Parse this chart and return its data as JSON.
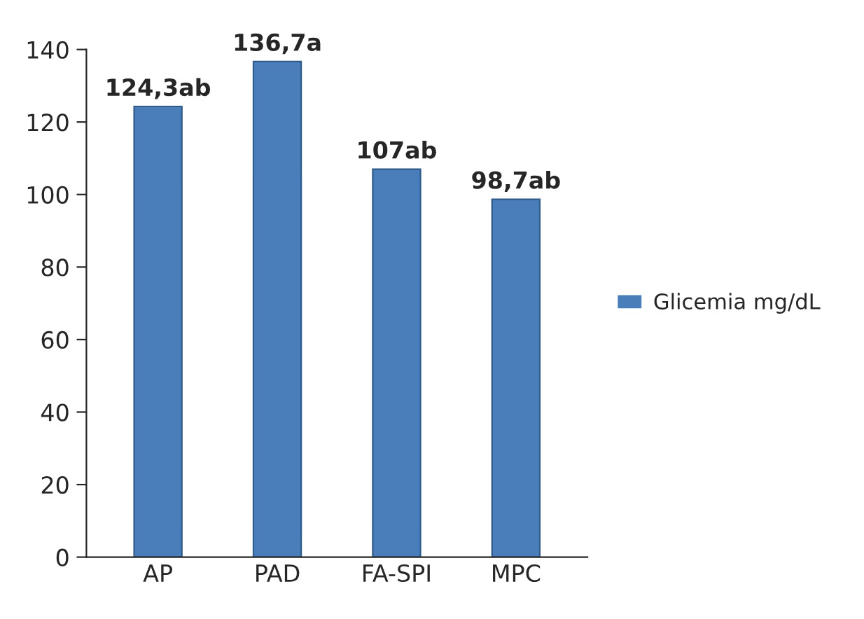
{
  "chart_data": {
    "type": "bar",
    "categories": [
      "AP",
      "PAD",
      "FA-SPI",
      "MPC"
    ],
    "series": [
      {
        "name": "Glicemia mg/dL",
        "color": "#4a7ebb",
        "values": [
          124.3,
          136.7,
          107,
          98.7
        ]
      }
    ],
    "value_labels": [
      "124,3ab",
      "136,7a",
      "107ab",
      "98,7ab"
    ],
    "ylim": [
      0,
      140
    ],
    "yticks": [
      0,
      20,
      40,
      60,
      80,
      100,
      120,
      140
    ],
    "grid": false,
    "legend": "right"
  }
}
